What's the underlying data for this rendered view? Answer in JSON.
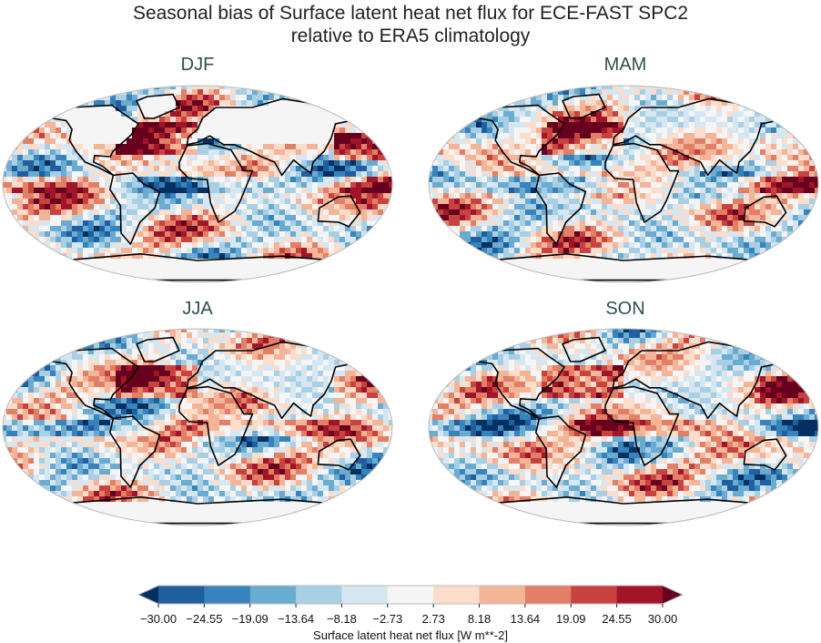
{
  "figure": {
    "title_line1": "Seasonal bias of Surface latent heat net flux for ECE-FAST SPC2",
    "title_line2": "relative to ERA5 climatology"
  },
  "panels": [
    {
      "title": "DJF"
    },
    {
      "title": "MAM"
    },
    {
      "title": "JJA"
    },
    {
      "title": "SON"
    }
  ],
  "chart_data": {
    "type": "heatmap",
    "projection": "robinson",
    "colormap": "RdBu_r",
    "colorbar": {
      "label": "Surface latent heat net flux [W m**-2]",
      "ticks": [
        "−30.00",
        "−24.55",
        "−19.09",
        "−13.64",
        "−8.18",
        "−2.73",
        "2.73",
        "8.18",
        "13.64",
        "19.09",
        "24.55",
        "30.00"
      ],
      "levels": [
        -30.0,
        -24.55,
        -19.09,
        -13.64,
        -8.18,
        -2.73,
        2.73,
        8.18,
        13.64,
        19.09,
        24.55,
        30.0
      ],
      "extend": "both",
      "colors": [
        "#053061",
        "#1f5e9f",
        "#3783bc",
        "#6aabd0",
        "#a8cfe4",
        "#d6e7f1",
        "#f5f5f5",
        "#fcdccb",
        "#f4b497",
        "#e27f66",
        "#c8433f",
        "#a21529",
        "#67001f"
      ]
    }
  }
}
